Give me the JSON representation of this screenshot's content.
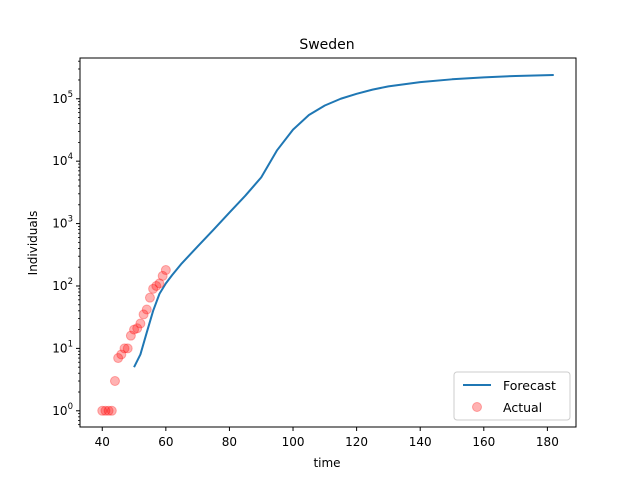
{
  "chart_data": {
    "type": "line",
    "title": "Sweden",
    "xlabel": "time",
    "ylabel": "Individuals",
    "xlim": [
      33,
      189
    ],
    "ylim": [
      0.55,
      450000
    ],
    "yscale": "log",
    "grid": false,
    "x_ticks": [
      40,
      60,
      80,
      100,
      120,
      140,
      160,
      180
    ],
    "y_ticks": [
      {
        "value": 1,
        "label": "10",
        "exp": "0"
      },
      {
        "value": 10,
        "label": "10",
        "exp": "1"
      },
      {
        "value": 100,
        "label": "10",
        "exp": "2"
      },
      {
        "value": 1000,
        "label": "10",
        "exp": "3"
      },
      {
        "value": 10000,
        "label": "10",
        "exp": "4"
      },
      {
        "value": 100000,
        "label": "10",
        "exp": "5"
      }
    ],
    "legend_position": "lower-right",
    "series": [
      {
        "name": "Forecast",
        "kind": "line",
        "color": "#1f77b4",
        "x": [
          50,
          52,
          54,
          56,
          58,
          60,
          62,
          65,
          70,
          75,
          80,
          85,
          90,
          95,
          100,
          105,
          110,
          115,
          120,
          125,
          130,
          140,
          150,
          160,
          170,
          182
        ],
        "y": [
          5,
          8,
          18,
          40,
          75,
          110,
          150,
          230,
          430,
          800,
          1500,
          2800,
          5500,
          15000,
          32000,
          55000,
          78000,
          100000,
          120000,
          140000,
          158000,
          185000,
          205000,
          220000,
          232000,
          240000
        ]
      },
      {
        "name": "Actual",
        "kind": "scatter",
        "color": "#ff0000",
        "x": [
          40,
          41,
          42,
          43,
          44,
          45,
          46,
          47,
          48,
          49,
          50,
          51,
          52,
          53,
          54,
          55,
          56,
          57,
          58,
          59,
          60
        ],
        "y": [
          1,
          1,
          1,
          1,
          3,
          7,
          8,
          10,
          10,
          16,
          20,
          21,
          25,
          35,
          42,
          65,
          90,
          100,
          110,
          145,
          180
        ]
      }
    ]
  }
}
